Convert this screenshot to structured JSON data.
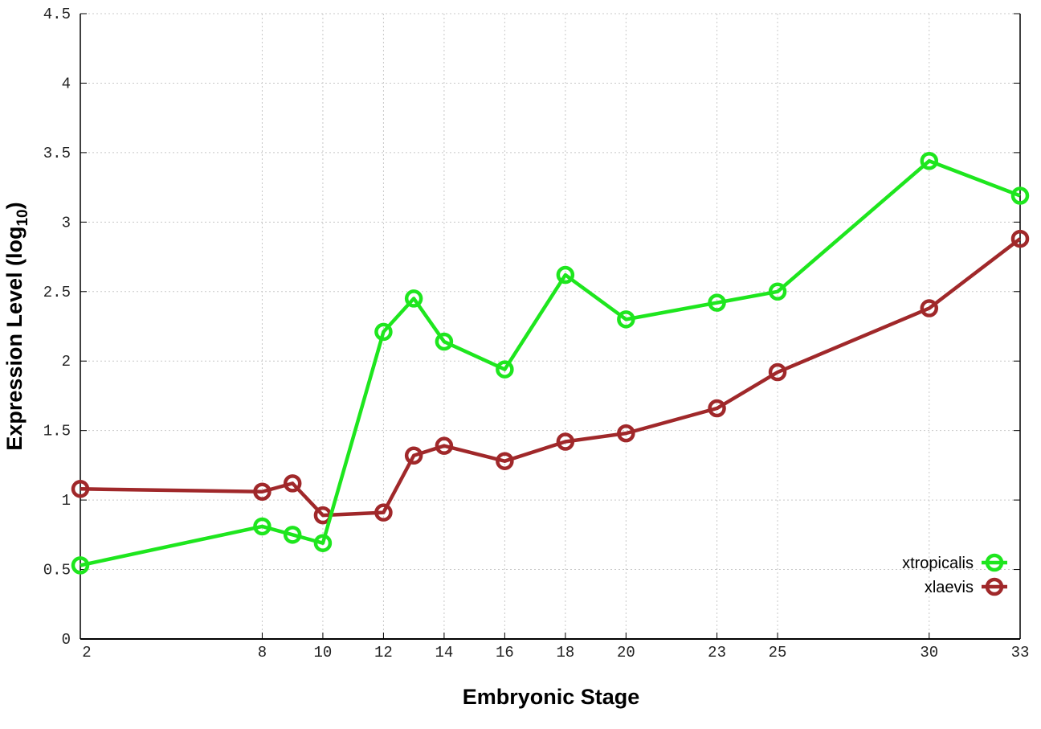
{
  "chart_data": {
    "type": "line",
    "title": "",
    "xlabel": "Embryonic Stage",
    "ylabel": "Expression Level (log",
    "ylabel_subscript": "10",
    "ylabel_suffix": ")",
    "xlim": [
      2,
      33
    ],
    "ylim": [
      0,
      4.5
    ],
    "x_ticks": [
      2,
      8,
      10,
      12,
      14,
      16,
      18,
      20,
      23,
      25,
      30,
      33
    ],
    "x_tick_labels": [
      "2",
      "8",
      "10",
      "12",
      "14",
      "16",
      "18",
      "20",
      "23",
      "25",
      "30",
      "33"
    ],
    "y_ticks": [
      0,
      0.5,
      1,
      1.5,
      2,
      2.5,
      3,
      3.5,
      4,
      4.5
    ],
    "y_tick_labels": [
      "0",
      "0.5",
      "1",
      "1.5",
      "2",
      "2.5",
      "3",
      "3.5",
      "4",
      "4.5"
    ],
    "grid": true,
    "legend_position": "bottom-right",
    "x": [
      2,
      8,
      9,
      10,
      12,
      13,
      14,
      16,
      18,
      20,
      23,
      25,
      30,
      33
    ],
    "series": [
      {
        "name": "xtropicalis",
        "color": "#1ee61e",
        "values": [
          0.53,
          0.81,
          0.75,
          0.69,
          2.21,
          2.45,
          2.14,
          1.94,
          2.62,
          2.3,
          2.42,
          2.5,
          3.44,
          3.19
        ]
      },
      {
        "name": "xlaevis",
        "color": "#a0282a",
        "values": [
          1.08,
          1.06,
          1.12,
          0.89,
          0.91,
          1.32,
          1.39,
          1.28,
          1.42,
          1.48,
          1.66,
          1.92,
          2.38,
          2.88
        ]
      }
    ]
  }
}
